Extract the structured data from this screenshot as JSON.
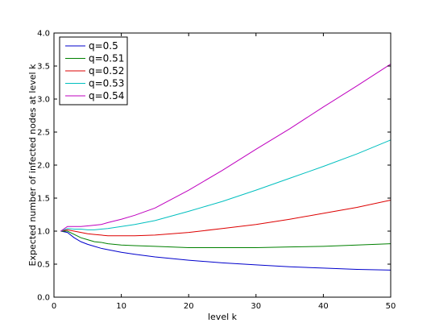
{
  "chart_data": {
    "type": "line",
    "xlabel": "level k",
    "ylabel": "Expected number of infected nodes at level k",
    "xlim": [
      0,
      50
    ],
    "ylim": [
      0.0,
      4.0
    ],
    "x_ticks": [
      0,
      10,
      20,
      30,
      40,
      50
    ],
    "x_tick_labels": [
      "0",
      "10",
      "20",
      "30",
      "40",
      "50"
    ],
    "y_ticks": [
      0.0,
      0.5,
      1.0,
      1.5,
      2.0,
      2.5,
      3.0,
      3.5,
      4.0
    ],
    "y_tick_labels": [
      "0.0",
      "0.5",
      "1.0",
      "1.5",
      "2.0",
      "2.5",
      "3.0",
      "3.5",
      "4.0"
    ],
    "grid": false,
    "legend_position": "top-left",
    "x": [
      1,
      2,
      3,
      4,
      5,
      6,
      7,
      8,
      10,
      12,
      15,
      20,
      25,
      30,
      35,
      40,
      45,
      50
    ],
    "series": [
      {
        "name": "q=0.5",
        "color": "#0000cc",
        "values": [
          1.0,
          0.98,
          0.9,
          0.84,
          0.8,
          0.77,
          0.74,
          0.72,
          0.68,
          0.65,
          0.61,
          0.56,
          0.52,
          0.49,
          0.46,
          0.44,
          0.42,
          0.41
        ]
      },
      {
        "name": "q=0.51",
        "color": "#008000",
        "values": [
          1.0,
          1.0,
          0.95,
          0.9,
          0.87,
          0.84,
          0.83,
          0.81,
          0.79,
          0.78,
          0.77,
          0.75,
          0.75,
          0.75,
          0.76,
          0.77,
          0.79,
          0.81
        ]
      },
      {
        "name": "q=0.52",
        "color": "#dd0000",
        "values": [
          1.0,
          1.02,
          1.0,
          0.98,
          0.96,
          0.95,
          0.94,
          0.93,
          0.93,
          0.93,
          0.94,
          0.98,
          1.04,
          1.1,
          1.18,
          1.27,
          1.36,
          1.47
        ]
      },
      {
        "name": "q=0.53",
        "color": "#00bfbf",
        "values": [
          1.0,
          1.04,
          1.03,
          1.03,
          1.02,
          1.02,
          1.03,
          1.04,
          1.07,
          1.1,
          1.16,
          1.3,
          1.45,
          1.62,
          1.8,
          1.98,
          2.17,
          2.38
        ]
      },
      {
        "name": "q=0.54",
        "color": "#bf00bf",
        "values": [
          1.0,
          1.07,
          1.07,
          1.07,
          1.08,
          1.09,
          1.1,
          1.13,
          1.18,
          1.24,
          1.35,
          1.62,
          1.92,
          2.24,
          2.55,
          2.88,
          3.2,
          3.53
        ]
      }
    ]
  }
}
